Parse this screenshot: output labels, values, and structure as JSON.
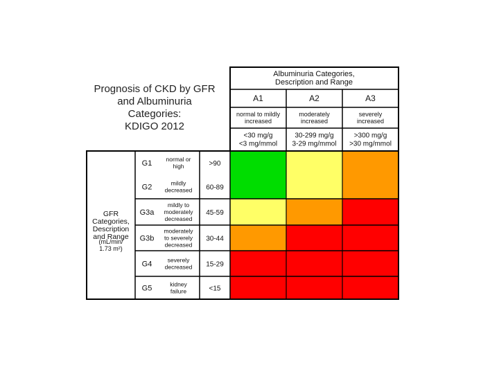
{
  "title": {
    "lines": [
      "Prognosis of CKD by GFR",
      "and Albuminuria",
      "Categories:",
      "KDIGO 2012"
    ]
  },
  "albuminuria": {
    "header": [
      "Albuminuria Categories,",
      "Description and Range"
    ],
    "categories": [
      {
        "code": "A1",
        "description": [
          "normal to mildly",
          "increased"
        ],
        "range": [
          "<30 mg/g",
          "<3 mg/mmol"
        ]
      },
      {
        "code": "A2",
        "description": [
          "moderately",
          "increased"
        ],
        "range": [
          "30-299 mg/g",
          "3-29 mg/mmol"
        ]
      },
      {
        "code": "A3",
        "description": [
          "severely",
          "increased"
        ],
        "range": [
          ">300 mg/g",
          ">30 mg/mmol"
        ]
      }
    ]
  },
  "gfr": {
    "header": [
      "GFR",
      "Categories,",
      "Description",
      "and Range",
      "(mL/min/",
      "1.73 m²)"
    ],
    "categories": [
      {
        "code": "G1",
        "description": [
          "normal or",
          "high"
        ],
        "range": ">90"
      },
      {
        "code": "G2",
        "description": [
          "mildly",
          "decreased"
        ],
        "range": "60-89"
      },
      {
        "code": "G3a",
        "description": [
          "mildly to",
          "moderately",
          "decreased"
        ],
        "range": "45-59"
      },
      {
        "code": "G3b",
        "description": [
          "moderately",
          "to severely",
          "decreased"
        ],
        "range": "30-44"
      },
      {
        "code": "G4",
        "description": [
          "severely",
          "decreased"
        ],
        "range": "15-29"
      },
      {
        "code": "G5",
        "description": [
          "kidney",
          "failure"
        ],
        "range": "<15"
      }
    ]
  },
  "risk_colors": {
    "green": "#00dd00",
    "yellow": "#ffff66",
    "orange": "#ff9900",
    "red": "#ff0000"
  },
  "risk_grid": [
    [
      "green",
      "yellow",
      "orange"
    ],
    [
      "green",
      "yellow",
      "orange"
    ],
    [
      "yellow",
      "orange",
      "red"
    ],
    [
      "orange",
      "red",
      "red"
    ],
    [
      "red",
      "red",
      "red"
    ],
    [
      "red",
      "red",
      "red"
    ]
  ]
}
